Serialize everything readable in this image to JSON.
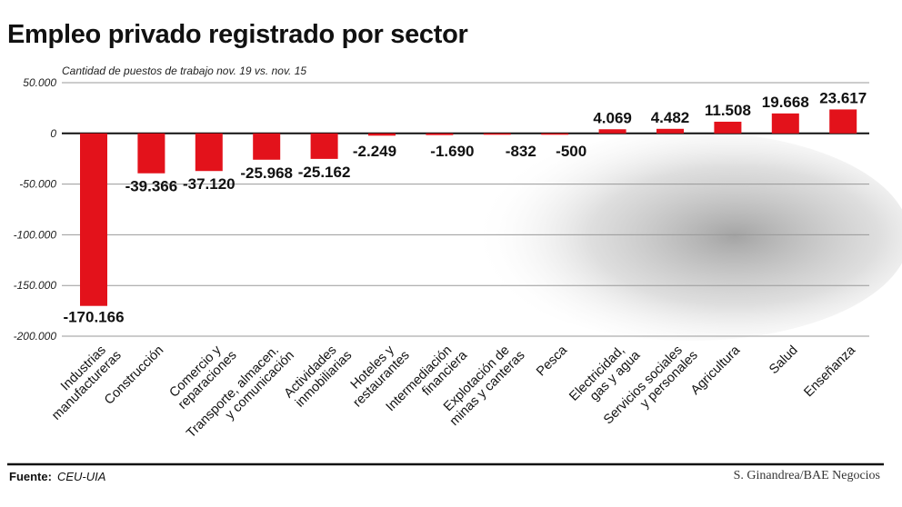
{
  "chart_data": {
    "type": "bar",
    "title": "Empleo privado registrado por sector",
    "subtitle": "Cantidad de puestos de trabajo nov. 19 vs. nov. 15",
    "categories": [
      [
        "Industrias",
        "manufactureras"
      ],
      [
        "Construcción"
      ],
      [
        "Comercio y",
        "reparaciones"
      ],
      [
        "Transporte, almacen.",
        "y comunicación"
      ],
      [
        "Actividades",
        "inmobiliarias"
      ],
      [
        "Hoteles y",
        "restaurantes"
      ],
      [
        "Intermediación",
        "financiera"
      ],
      [
        "Explotación de",
        "minas y canteras"
      ],
      [
        "Pesca"
      ],
      [
        "Electricidad,",
        "gas y agua"
      ],
      [
        "Servicios sociales",
        "y personales"
      ],
      [
        "Agricultura"
      ],
      [
        "Salud"
      ],
      [
        "Enseñanza"
      ]
    ],
    "values": [
      -170166,
      -39366,
      -37120,
      -25968,
      -25162,
      -2249,
      -1690,
      -832,
      -500,
      4069,
      4482,
      11508,
      19668,
      23617
    ],
    "data_labels": [
      "-170.166",
      "-39.366",
      "-37.120",
      "-25.968",
      "-25.162",
      "-2.249",
      "-1.690",
      "-832",
      "-500",
      "4.069",
      "4.482",
      "11.508",
      "19.668",
      "23.617"
    ],
    "yticks": [
      50000,
      0,
      -50000,
      -100000,
      -150000,
      -200000
    ],
    "ytick_labels": [
      "50.000",
      "0",
      "-50.000",
      "-100.000",
      "-150.000",
      "-200.000"
    ],
    "ylim": [
      -200000,
      50000
    ],
    "grid": true,
    "bar_color": "#e3121b",
    "xlabel": "",
    "ylabel": ""
  },
  "footer": {
    "source_label": "Fuente:",
    "source": "CEU-UIA",
    "credit": "S. Ginandrea/BAE Negocios"
  }
}
